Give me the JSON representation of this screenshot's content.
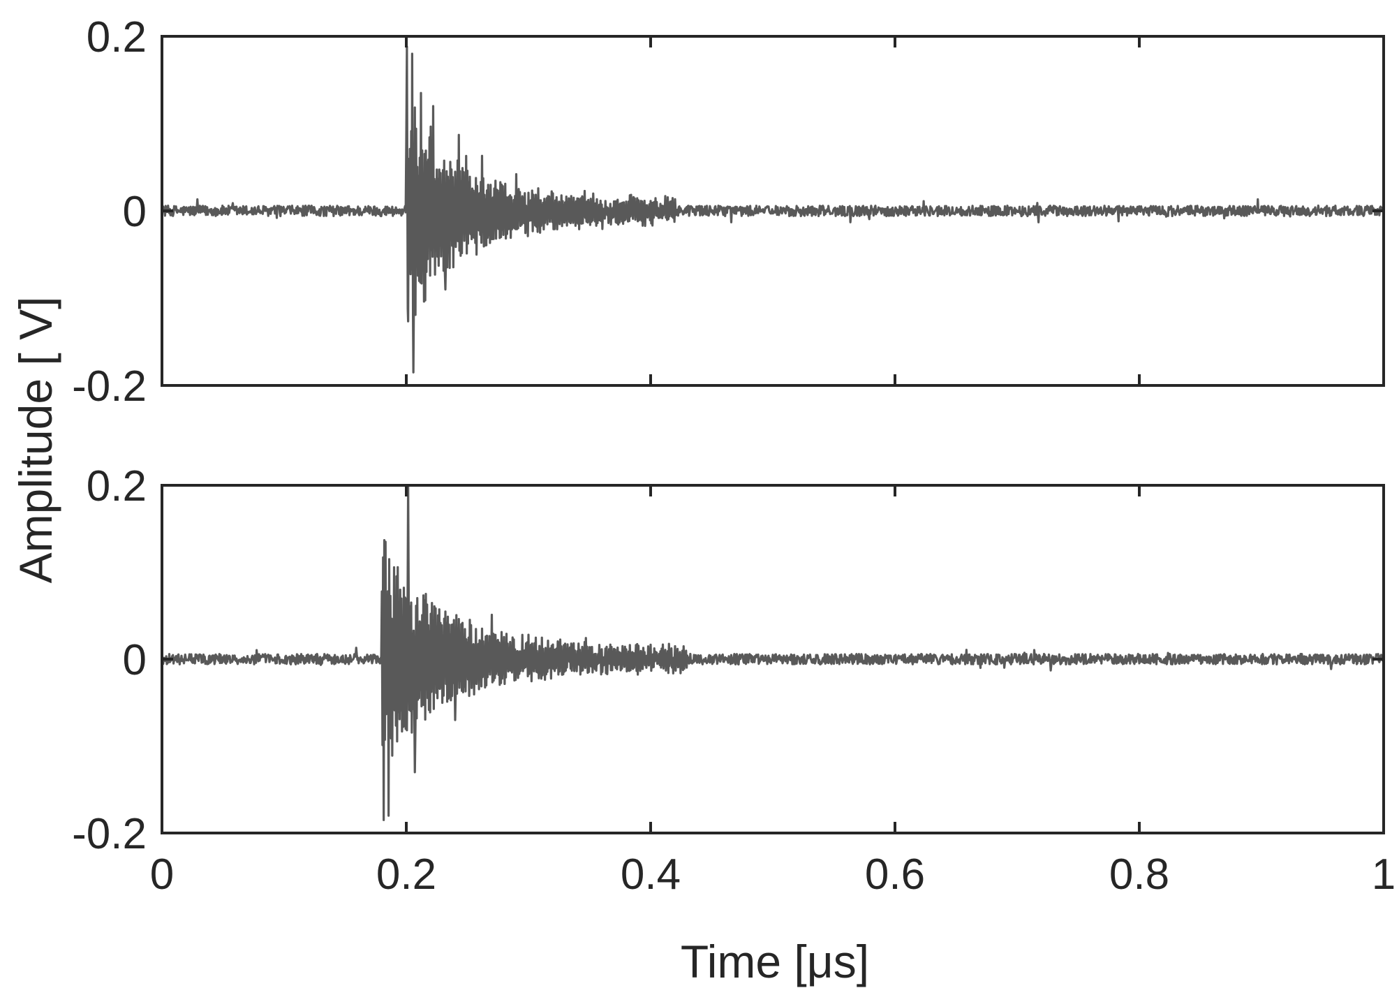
{
  "chart_data": [
    {
      "type": "line",
      "panel": "top",
      "xlim": [
        0,
        1
      ],
      "ylim": [
        -0.2,
        0.2
      ],
      "y_ticks": [
        0.2,
        0,
        -0.2
      ],
      "y_tick_labels": [
        "0.2",
        "0",
        "-0.2"
      ],
      "x_ticks": [
        0,
        0.2,
        0.4,
        0.6,
        0.8,
        1
      ],
      "x_tick_labels": [],
      "grid": false,
      "series": [
        {
          "color": "#595959",
          "noise_amplitude": 0.006,
          "burst": {
            "onset": 0.2,
            "peaks": [
              {
                "x": 0.2005,
                "y": 0.188
              },
              {
                "x": 0.2012,
                "y": -0.112
              },
              {
                "x": 0.2048,
                "y": 0.18
              },
              {
                "x": 0.2058,
                "y": -0.185
              },
              {
                "x": 0.212,
                "y": 0.135
              },
              {
                "x": 0.222,
                "y": 0.12
              },
              {
                "x": 0.232,
                "y": -0.09
              },
              {
                "x": 0.243,
                "y": 0.087
              },
              {
                "x": 0.262,
                "y": 0.063
              },
              {
                "x": 0.29,
                "y": 0.042
              }
            ],
            "decay_end": 0.42
          }
        }
      ]
    },
    {
      "type": "line",
      "panel": "bottom",
      "xlim": [
        0,
        1
      ],
      "ylim": [
        -0.2,
        0.2
      ],
      "y_ticks": [
        0.2,
        0,
        -0.2
      ],
      "y_tick_labels": [
        "0.2",
        "0",
        "-0.2"
      ],
      "x_ticks": [
        0,
        0.2,
        0.4,
        0.6,
        0.8,
        1
      ],
      "x_tick_labels": [
        "0",
        "0.2",
        "0.4",
        "0.6",
        "0.8",
        "1"
      ],
      "grid": false,
      "series": [
        {
          "color": "#595959",
          "noise_amplitude": 0.006,
          "burst": {
            "onset": 0.18,
            "peaks": [
              {
                "x": 0.1815,
                "y": -0.185
              },
              {
                "x": 0.183,
                "y": 0.135
              },
              {
                "x": 0.1855,
                "y": -0.18
              },
              {
                "x": 0.2015,
                "y": 0.2
              },
              {
                "x": 0.207,
                "y": -0.13
              },
              {
                "x": 0.216,
                "y": 0.075
              },
              {
                "x": 0.24,
                "y": -0.07
              },
              {
                "x": 0.27,
                "y": 0.051
              },
              {
                "x": 0.3,
                "y": 0.028
              }
            ],
            "decay_end": 0.43
          }
        }
      ]
    }
  ],
  "labels": {
    "ylabel": "Amplitude [   V]",
    "xlabel": "Time [μs]"
  }
}
